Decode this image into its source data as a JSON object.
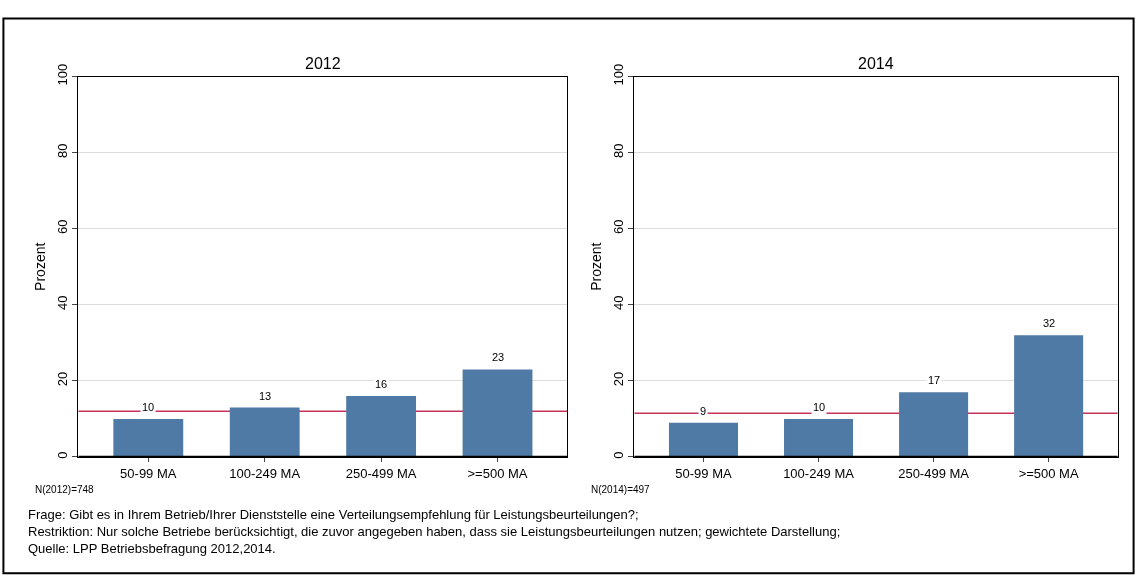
{
  "chart_data": [
    {
      "type": "bar",
      "title": "2012",
      "ylabel": "Prozent",
      "categories": [
        "50-99 MA",
        "100-249 MA",
        "250-499 MA",
        ">=500 MA"
      ],
      "values": [
        10,
        13,
        16,
        23
      ],
      "color": "#4f7aa5",
      "data_labels": true,
      "ylim": [
        0,
        100
      ],
      "yticks": [
        0,
        20,
        40,
        60,
        80,
        100
      ],
      "grid": "y",
      "ref_lines": [
        {
          "axis": "y",
          "value": 12,
          "color": "#c8325a"
        }
      ],
      "annotations": [
        "N(2012)=748"
      ]
    },
    {
      "type": "bar",
      "title": "2014",
      "ylabel": "Prozent",
      "categories": [
        "50-99 MA",
        "100-249 MA",
        "250-499 MA",
        ">=500 MA"
      ],
      "values": [
        9,
        10,
        17,
        32
      ],
      "color": "#4f7aa5",
      "data_labels": true,
      "ylim": [
        0,
        100
      ],
      "yticks": [
        0,
        20,
        40,
        60,
        80,
        100
      ],
      "grid": "y",
      "ref_lines": [
        {
          "axis": "y",
          "value": 11.5,
          "color": "#c8325a"
        }
      ],
      "annotations": [
        "N(2014)=497",
        "Frage: Gibt es in Ihrem Betrieb/Ihrer Dienststelle eine Verteilungsempfehlung für Leistungsbeurteilungen?;",
        "Restriktion: Nur solche Betriebe berücksichtigt, die zuvor angegeben haben, dass sie Leistungsbeurteilungen nutzen; gewichtete Darstellung;",
        "Quelle: LPP Betriebsbefragung 2012,2014."
      ]
    }
  ]
}
